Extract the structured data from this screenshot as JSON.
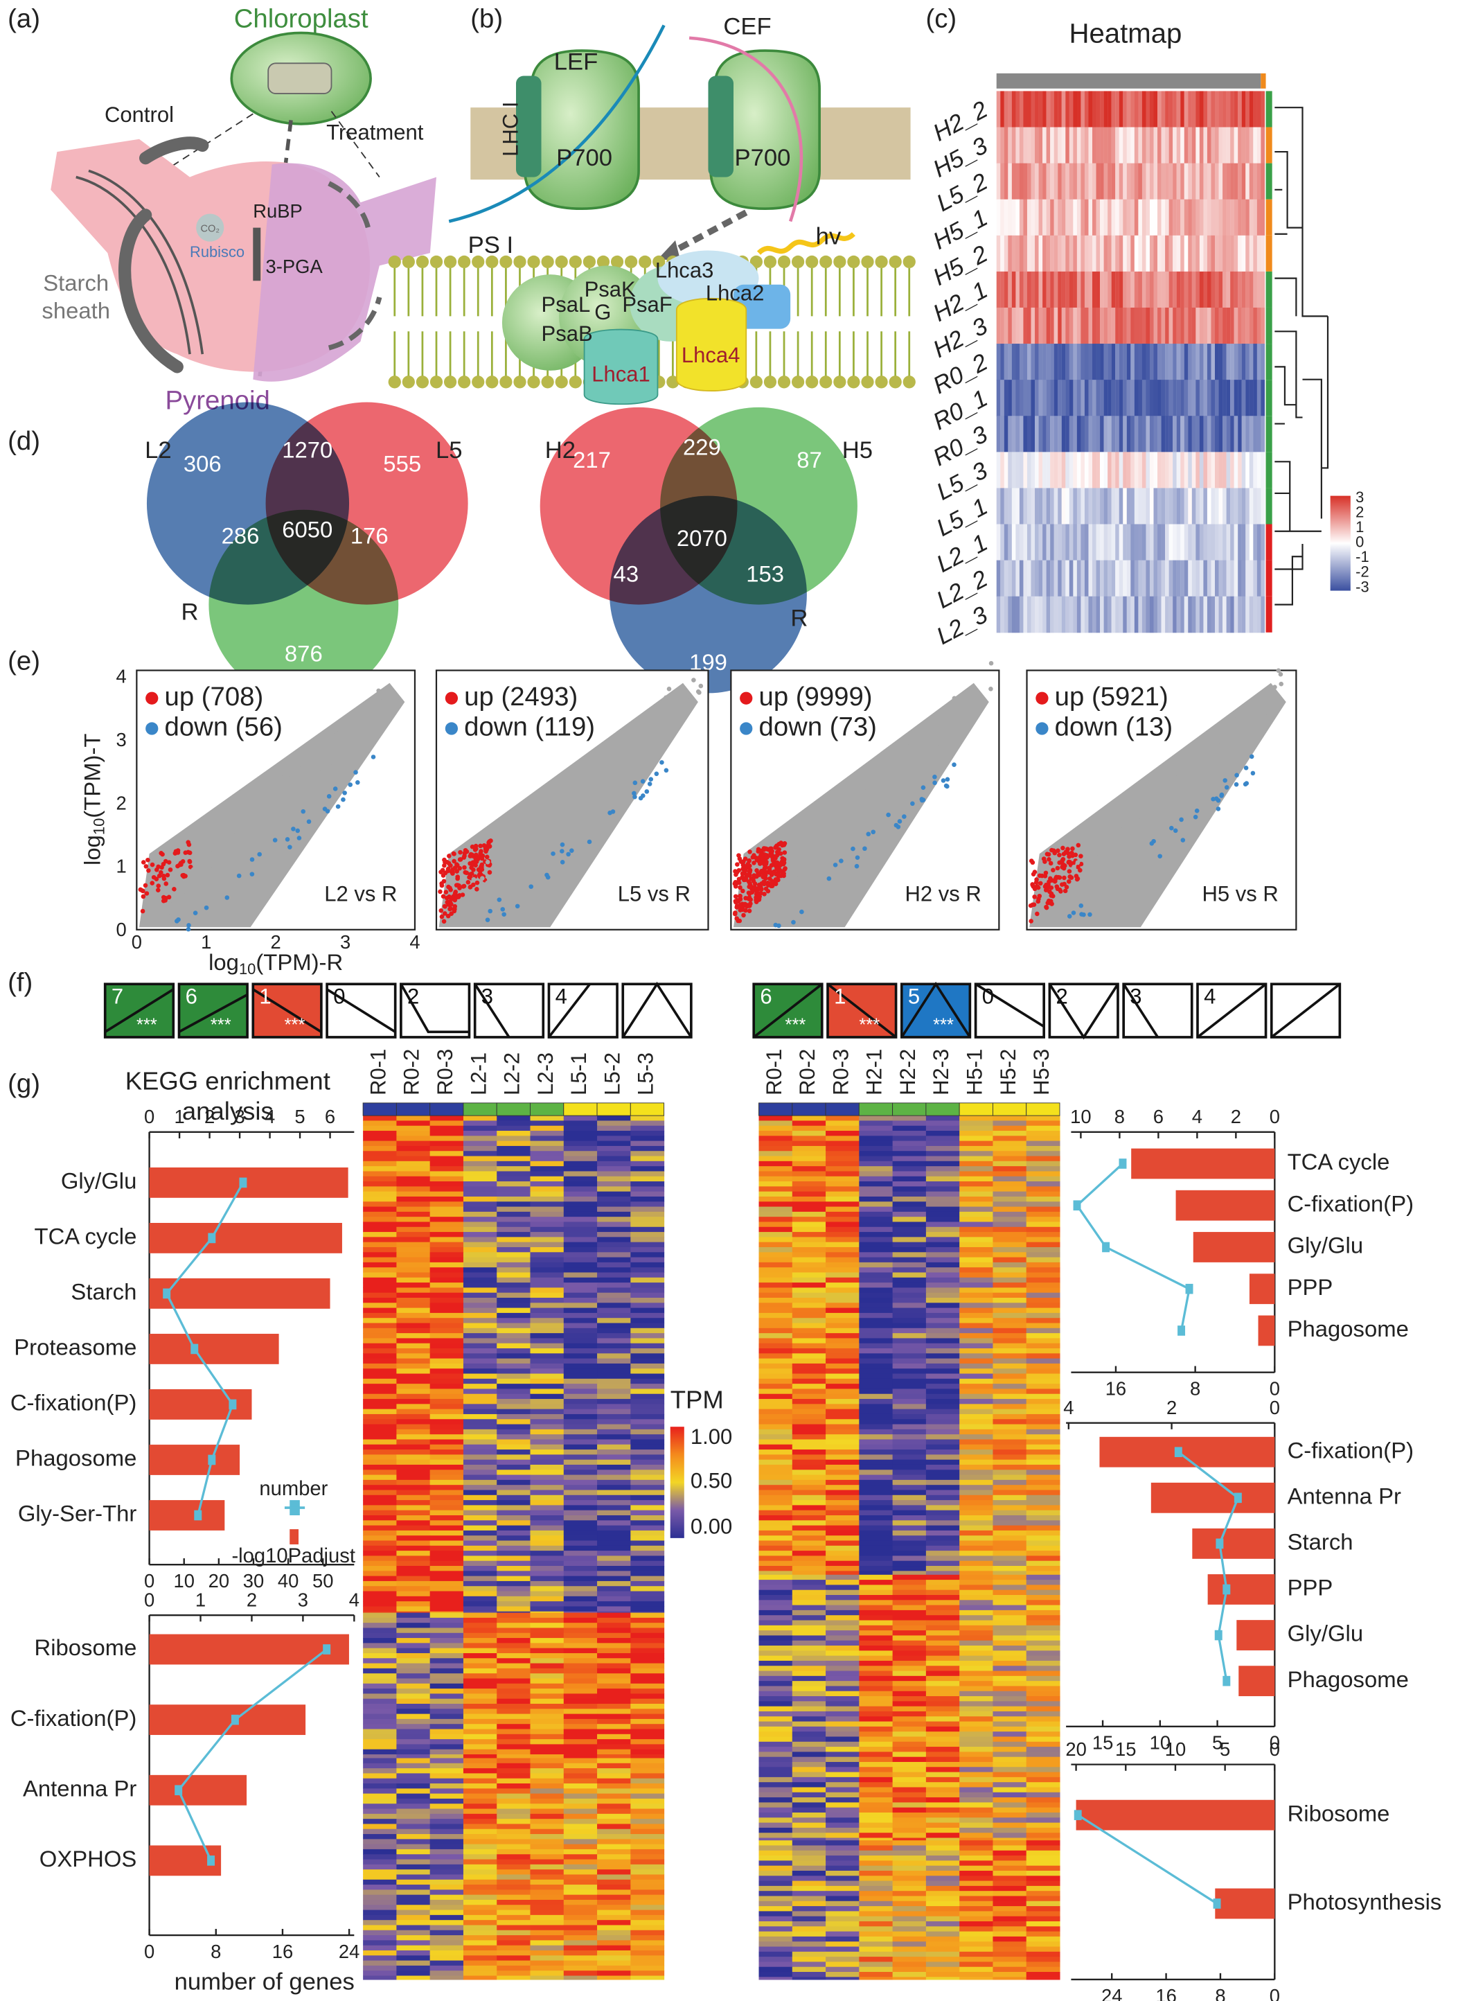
{
  "panels": {
    "a": {
      "label": "(a)",
      "chloroplast": "Chloroplast",
      "control": "Control",
      "treatment": "Treatment",
      "rubp": "RuBP",
      "co2": "CO₂",
      "rubisco": "Rubisco",
      "pga": "3-PGA",
      "starch_sheath": [
        "Starch",
        "sheath"
      ],
      "pyrenoid": "Pyrenoid"
    },
    "b": {
      "label": "(b)",
      "lef": "LEF",
      "cef": "CEF",
      "lhc": "LHC I",
      "p700": [
        "P700",
        "P700"
      ],
      "psi": "PS I",
      "hv": "hv",
      "subunits": [
        "PsaK",
        "PsaL",
        "G",
        "PsaF",
        "PsaB",
        "Lhca3",
        "Lhca2",
        "Lhca1",
        "Lhca4"
      ]
    },
    "c": {
      "label": "(c)",
      "title": "Heatmap",
      "rows": [
        "H2_2",
        "H5_3",
        "L5_2",
        "H5_1",
        "H5_2",
        "H2_1",
        "H2_3",
        "R0_2",
        "R0_1",
        "R0_3",
        "L5_3",
        "L5_1",
        "L2_1",
        "L2_2",
        "L2_3"
      ],
      "scale": [
        3,
        2,
        1,
        0,
        -1,
        -2,
        -3
      ]
    },
    "d": {
      "label": "(d)",
      "venns": [
        {
          "sets": [
            "L2",
            "L5",
            "R"
          ],
          "counts": [
            306,
            1270,
            555,
            6050,
            286,
            176,
            876
          ]
        },
        {
          "sets": [
            "H2",
            "H5",
            "R"
          ],
          "counts": [
            217,
            229,
            87,
            2070,
            43,
            153,
            199
          ]
        }
      ]
    },
    "e": {
      "label": "(e)",
      "y_label": {
        "base": "log",
        "sub": "10",
        "rest": "(TPM)-T"
      },
      "x_label": {
        "base": "log",
        "sub": "10",
        "rest": "(TPM)-R"
      },
      "yticks": [
        4,
        3,
        2,
        1,
        0
      ],
      "xticks": [
        0,
        1,
        2,
        3,
        4
      ],
      "plots": [
        {
          "up": "up (708)",
          "down": "down (56)",
          "comparison": "L2 vs R"
        },
        {
          "up": "up (2493)",
          "down": "down (119)",
          "comparison": "L5 vs R"
        },
        {
          "up": "up (9999)",
          "down": "down (73)",
          "comparison": "H2 vs R"
        },
        {
          "up": "up (5921)",
          "down": "down (13)",
          "comparison": "H5 vs R"
        }
      ]
    },
    "f": {
      "label": "(f)",
      "groups": [
        [
          {
            "n": 7,
            "sig": "***"
          },
          {
            "n": 6,
            "sig": "***"
          },
          {
            "n": 1,
            "sig": "***"
          },
          {
            "n": 0
          },
          {
            "n": 2
          },
          {
            "n": 3
          },
          {
            "n": 4
          },
          {}
        ],
        [
          {
            "n": 6,
            "sig": "***"
          },
          {
            "n": 1,
            "sig": "***"
          },
          {
            "n": 5,
            "sig": "***"
          },
          {
            "n": 0
          },
          {
            "n": 2
          },
          {
            "n": 3
          },
          {
            "n": 4
          },
          {}
        ]
      ]
    },
    "g": {
      "label": "(g)",
      "title": [
        "KEGG enrichment",
        "analysis"
      ],
      "columns": [
        [
          "R0-1",
          "R0-2",
          "R0-3",
          "L2-1",
          "L2-2",
          "L2-3",
          "L5-1",
          "L5-2",
          "L5-3"
        ],
        [
          "R0-1",
          "R0-2",
          "R0-3",
          "H2-1",
          "H2-2",
          "H2-3",
          "H5-1",
          "H5-2",
          "H5-3"
        ]
      ],
      "tpm": {
        "title": "TPM",
        "ticks": [
          "1.00",
          "0.50",
          "0.00"
        ]
      }
    }
  },
  "chart_data": [
    {
      "type": "bar",
      "categories": [
        "Gly/Glu",
        "TCA cycle",
        "Starch",
        "Proteasome",
        "C-fixation(P)",
        "Phagosome",
        "Gly-Ser-Thr"
      ],
      "series": [
        {
          "name": "-log10Padjust",
          "color": "#e34a33",
          "values": [
            6.6,
            6.4,
            6.0,
            4.3,
            3.4,
            3.0,
            2.5
          ]
        },
        {
          "name": "number",
          "color": "#5bbcd6",
          "values": [
            27,
            18,
            5,
            13,
            24,
            18,
            14
          ],
          "axis": "x2"
        }
      ],
      "xlim": [
        0,
        6.8
      ],
      "xticks": [
        0,
        1,
        2,
        3,
        4,
        5,
        6
      ],
      "x2lim": [
        0,
        59
      ],
      "x2ticks": [
        0,
        10,
        20,
        30,
        40,
        50
      ],
      "legend": true
    },
    {
      "type": "bar",
      "categories": [
        "Ribosome",
        "C-fixation(P)",
        "Antenna Pr",
        "OXPHOS"
      ],
      "series": [
        {
          "color": "#e34a33",
          "values": [
            3.9,
            3.05,
            1.9,
            1.4
          ]
        },
        {
          "color": "#5bbcd6",
          "values": [
            21.3,
            10.3,
            3.5,
            7.4
          ],
          "axis": "x2"
        }
      ],
      "xlim": [
        0,
        4
      ],
      "xticks": [
        0,
        1,
        2,
        3,
        4
      ],
      "x2lim": [
        0,
        24.6
      ],
      "x2ticks": [
        0,
        8,
        16,
        24
      ],
      "x_label": "number of genes"
    },
    {
      "type": "bar",
      "reversed": true,
      "categories": [
        "TCA cycle",
        "C-fixation(P)",
        "Gly/Glu",
        "PPP",
        "Phagosome"
      ],
      "series": [
        {
          "color": "#e34a33",
          "values": [
            7.4,
            5.1,
            4.2,
            1.3,
            0.85
          ]
        },
        {
          "color": "#5bbcd6",
          "values": [
            15.3,
            19.9,
            17,
            8.6,
            9.4
          ],
          "axis": "x2"
        }
      ],
      "xlim": [
        0,
        10.5
      ],
      "xticks": [
        10,
        8,
        6,
        4,
        2,
        0
      ],
      "x2lim": [
        0,
        20.5
      ],
      "x2ticks": [
        16,
        8,
        0
      ]
    },
    {
      "type": "bar",
      "reversed": true,
      "categories": [
        "C-fixation(P)",
        "Antenna Pr",
        "Starch",
        "PPP",
        "Gly/Glu",
        "Phagosome"
      ],
      "series": [
        {
          "color": "#e34a33",
          "values": [
            3.4,
            2.4,
            1.6,
            1.3,
            0.74,
            0.7
          ]
        },
        {
          "color": "#5bbcd6",
          "values": [
            8.4,
            3.2,
            4.8,
            4.2,
            4.9,
            4.2
          ],
          "axis": "x2"
        }
      ],
      "xlim": [
        0,
        4.05
      ],
      "xticks": [
        4,
        2,
        0
      ],
      "x2lim": [
        0,
        18.2
      ],
      "x2ticks": [
        15,
        10,
        5,
        0
      ]
    },
    {
      "type": "bar",
      "reversed": true,
      "categories": [
        "Ribosome",
        "Photosynthesis"
      ],
      "series": [
        {
          "color": "#e34a33",
          "values": [
            20,
            6
          ]
        },
        {
          "color": "#5bbcd6",
          "values": [
            29,
            8.5
          ],
          "axis": "x2"
        }
      ],
      "xlim": [
        0,
        20.5
      ],
      "xticks": [
        20,
        15,
        10,
        5,
        0
      ],
      "x2lim": [
        0,
        30
      ],
      "x2ticks": [
        24,
        16,
        8,
        0
      ]
    }
  ]
}
